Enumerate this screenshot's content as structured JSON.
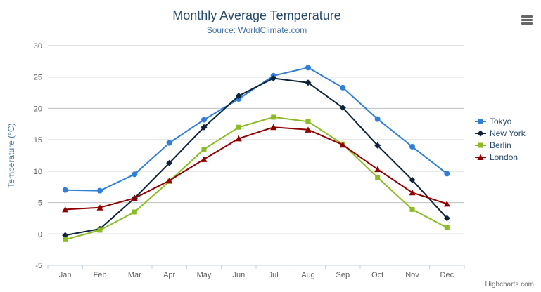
{
  "header": {
    "title": "Monthly Average Temperature",
    "subtitle": "Source: WorldClimate.com"
  },
  "credits": "Highcharts.com",
  "chart_data": {
    "type": "line",
    "title": "Monthly Average Temperature",
    "subtitle": "Source: WorldClimate.com",
    "categories": [
      "Jan",
      "Feb",
      "Mar",
      "Apr",
      "May",
      "Jun",
      "Jul",
      "Aug",
      "Sep",
      "Oct",
      "Nov",
      "Dec"
    ],
    "xlabel": "",
    "ylabel": "Temperature (°C)",
    "ylim": [
      -5,
      30
    ],
    "ytick_step": 5,
    "grid": true,
    "legend_position": "right",
    "series": [
      {
        "name": "Tokyo",
        "color": "#2f7ed8",
        "marker": "circle",
        "values": [
          7.0,
          6.9,
          9.5,
          14.5,
          18.2,
          21.5,
          25.2,
          26.5,
          23.3,
          18.3,
          13.9,
          9.6
        ]
      },
      {
        "name": "New York",
        "color": "#0d233a",
        "marker": "diamond",
        "values": [
          -0.2,
          0.8,
          5.7,
          11.3,
          17.0,
          22.0,
          24.8,
          24.1,
          20.1,
          14.1,
          8.6,
          2.5
        ]
      },
      {
        "name": "Berlin",
        "color": "#8bbc21",
        "marker": "square",
        "values": [
          -0.9,
          0.6,
          3.5,
          8.4,
          13.5,
          17.0,
          18.6,
          17.9,
          14.3,
          9.0,
          3.9,
          1.0
        ]
      },
      {
        "name": "London",
        "color": "#910000",
        "marker": "triangle",
        "values": [
          3.9,
          4.2,
          5.7,
          8.5,
          11.9,
          15.2,
          17.0,
          16.6,
          14.2,
          10.3,
          6.6,
          4.8
        ]
      }
    ]
  }
}
